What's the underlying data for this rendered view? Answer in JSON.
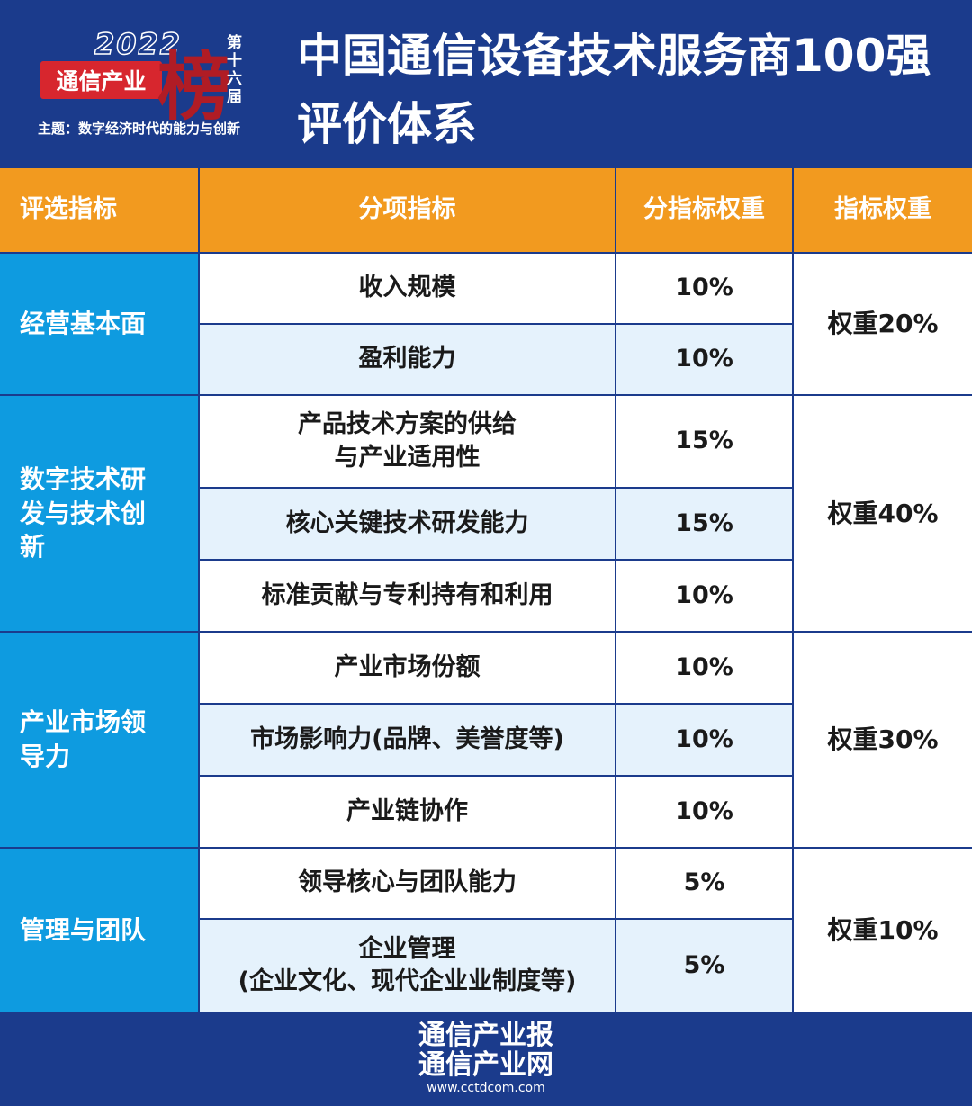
{
  "header": {
    "logo": {
      "year": "2022",
      "brand": "通信产业",
      "big_char": "榜",
      "edition": "第十六届",
      "theme": "主题：数字经济时代的能力与创新"
    },
    "title": [
      "中国通信设备技术服务商100强",
      "评价体系"
    ]
  },
  "table": {
    "columns": [
      "评选指标",
      "分项指标",
      "分指标权重",
      "指标权重"
    ],
    "groups": [
      {
        "name": "经营基本面",
        "weight": "权重20%",
        "items": [
          {
            "name": "收入规模",
            "weight": "10%"
          },
          {
            "name": "盈利能力",
            "weight": "10%"
          }
        ]
      },
      {
        "name": "数字技术研发与技术创新",
        "weight": "权重40%",
        "items": [
          {
            "name": "产品技术方案的供给\n与产业适用性",
            "weight": "15%"
          },
          {
            "name": "核心关键技术研发能力",
            "weight": "15%"
          },
          {
            "name": "标准贡献与专利持有和利用",
            "weight": "10%"
          }
        ]
      },
      {
        "name": "产业市场领导力",
        "weight": "权重30%",
        "items": [
          {
            "name": "产业市场份额",
            "weight": "10%"
          },
          {
            "name": "市场影响力(品牌、美誉度等)",
            "weight": "10%"
          },
          {
            "name": "产业链协作",
            "weight": "10%"
          }
        ]
      },
      {
        "name": "管理与团队",
        "weight": "权重10%",
        "items": [
          {
            "name": "领导核心与团队能力",
            "weight": "5%"
          },
          {
            "name": "企业管理\n(企业文化、现代企业业制度等)",
            "weight": "5%"
          }
        ]
      }
    ]
  },
  "footer": {
    "lines": [
      "通信产业报",
      "通信产业网"
    ],
    "url": "www.cctdcom.com"
  }
}
